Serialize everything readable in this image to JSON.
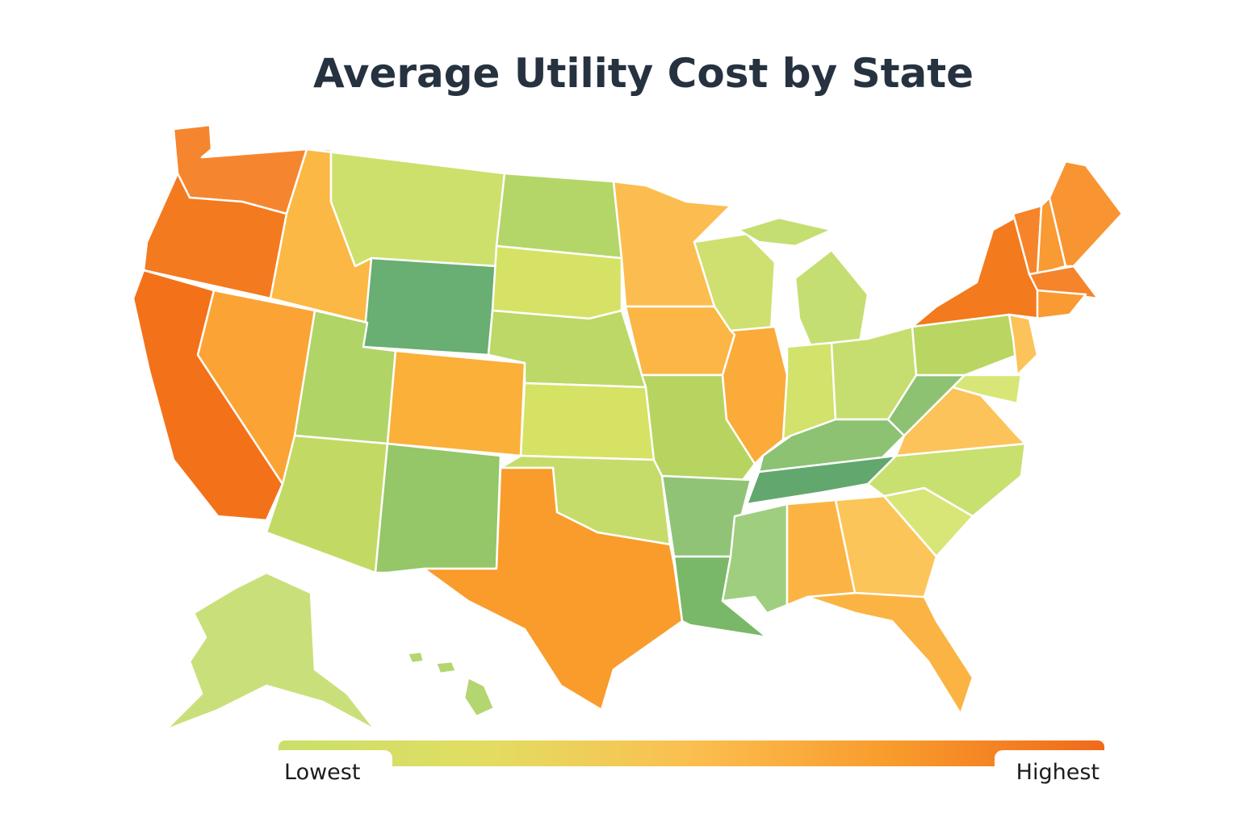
{
  "header": {
    "title": "Average Utility Cost by State"
  },
  "legend": {
    "low_label": "Lowest",
    "high_label": "Highest",
    "colors": [
      "#c9e06a",
      "#e2dd62",
      "#fbbf4f",
      "#f89a2b",
      "#f06a1a"
    ]
  }
}
